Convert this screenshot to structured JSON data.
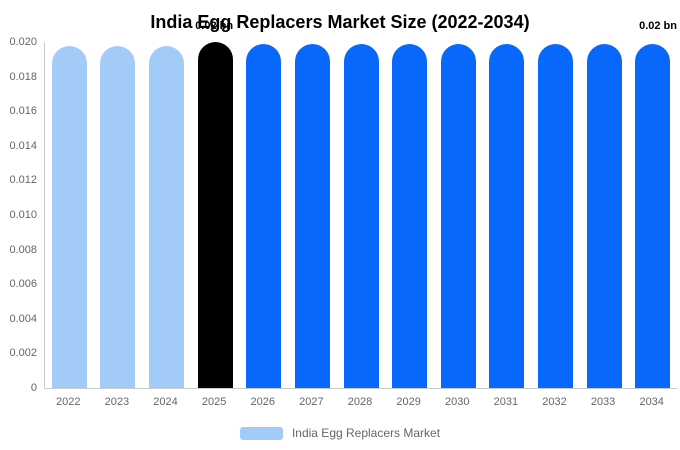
{
  "title": "India Egg Replacers Market Size (2022-2034)",
  "annotations": {
    "base_year_label": "0.02 bn",
    "forecast_end_label": "0.02 bn"
  },
  "legend": {
    "label": "India Egg Replacers Market"
  },
  "colors": {
    "historical": "#a3cbf8",
    "base_year": "#000000",
    "forecast": "#0868fb",
    "axis_line": "#cccccc",
    "tick_text": "#666666",
    "title_text": "#000000",
    "background": "#ffffff"
  },
  "y_axis": {
    "tick_labels": [
      "0.020",
      "0.018",
      "0.016",
      "0.014",
      "0.012",
      "0.010",
      "0.008",
      "0.006",
      "0.004",
      "0.002",
      "0"
    ],
    "tick_values": [
      0.02,
      0.018,
      0.016,
      0.014,
      0.012,
      0.01,
      0.008,
      0.006,
      0.004,
      0.002,
      0
    ]
  },
  "chart_data": {
    "type": "bar",
    "title": "India Egg Replacers Market Size (2022-2034)",
    "series_name": "India Egg Replacers Market",
    "categories": [
      "2022",
      "2023",
      "2024",
      "2025",
      "2026",
      "2027",
      "2028",
      "2029",
      "2030",
      "2031",
      "2032",
      "2033",
      "2034"
    ],
    "values": [
      0.0198,
      0.0198,
      0.0198,
      0.02,
      0.0199,
      0.0199,
      0.0199,
      0.0199,
      0.0199,
      0.0199,
      0.0199,
      0.0199,
      0.0199
    ],
    "roles": [
      "historical",
      "historical",
      "historical",
      "base_year",
      "forecast",
      "forecast",
      "forecast",
      "forecast",
      "forecast",
      "forecast",
      "forecast",
      "forecast",
      "forecast"
    ],
    "base_year_index": 3,
    "xlabel": "",
    "ylabel": "",
    "ylim": [
      0,
      0.02
    ],
    "grid": false,
    "legend_position": "bottom-center",
    "unit": "bn"
  }
}
